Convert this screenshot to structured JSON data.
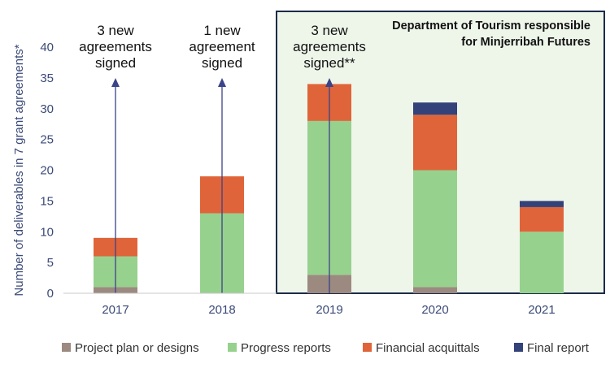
{
  "colors": {
    "project_plan": "#9c8a80",
    "progress": "#97d18e",
    "financial": "#e0643a",
    "final": "#34427a",
    "axis_text": "#3b4a78",
    "arrow": "#3a4488",
    "frame": "#1c2a4a",
    "frame_fill": "#eef6ea"
  },
  "chart_data": {
    "type": "bar",
    "stacked": true,
    "categories": [
      "2017",
      "2018",
      "2019",
      "2020",
      "2021"
    ],
    "series": [
      {
        "name": "Project plan or designs",
        "color_key": "project_plan",
        "values": [
          1,
          0,
          3,
          1,
          0
        ]
      },
      {
        "name": "Progress reports",
        "color_key": "progress",
        "values": [
          5,
          13,
          25,
          19,
          10
        ]
      },
      {
        "name": "Financial acquittals",
        "color_key": "financial",
        "values": [
          3,
          6,
          6,
          9,
          4
        ]
      },
      {
        "name": "Final report",
        "color_key": "final",
        "values": [
          0,
          0,
          0,
          2,
          1
        ]
      }
    ],
    "ylabel": "Number of deliverables in 7 grant agreements*",
    "ylim": [
      0,
      40
    ],
    "yticks": [
      0,
      5,
      10,
      15,
      20,
      25,
      30,
      35,
      40
    ],
    "grid": false,
    "legend_position": "bottom",
    "annotations": [
      {
        "category": "2017",
        "lines": [
          "3 new",
          "agreements",
          "signed"
        ]
      },
      {
        "category": "2018",
        "lines": [
          "1 new",
          "agreement",
          "signed"
        ]
      },
      {
        "category": "2019",
        "lines": [
          "3 new",
          "agreements",
          "signed**"
        ]
      }
    ],
    "highlight_box": {
      "from_category": "2019",
      "to_category": "2021",
      "lines": [
        "Department of Tourism responsible",
        "for Minjerribah Futures"
      ]
    }
  }
}
